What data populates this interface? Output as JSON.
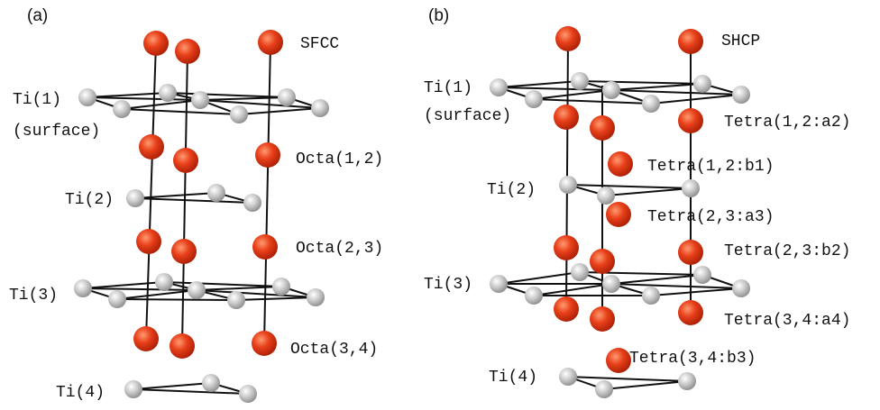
{
  "panels": [
    {
      "label": "(a)",
      "structure": "SFCC",
      "labels": [
        "Ti(1)",
        "(surface)",
        "Octa(1,2)",
        "Ti(2)",
        "Octa(2,3)",
        "Ti(3)",
        "Octa(3,4)",
        "Ti(4)"
      ]
    },
    {
      "label": "(b)",
      "structure": "SHCP",
      "labels": [
        "Ti(1)",
        "(surface)",
        "Tetra(1,2:a2)",
        "Tetra(1,2:b1)",
        "Ti(2)",
        "Tetra(2,3:a3)",
        "Tetra(2,3:b2)",
        "Ti(3)",
        "Tetra(3,4:a4)",
        "Tetra(3,4:b3)",
        "Ti(4)"
      ]
    }
  ]
}
